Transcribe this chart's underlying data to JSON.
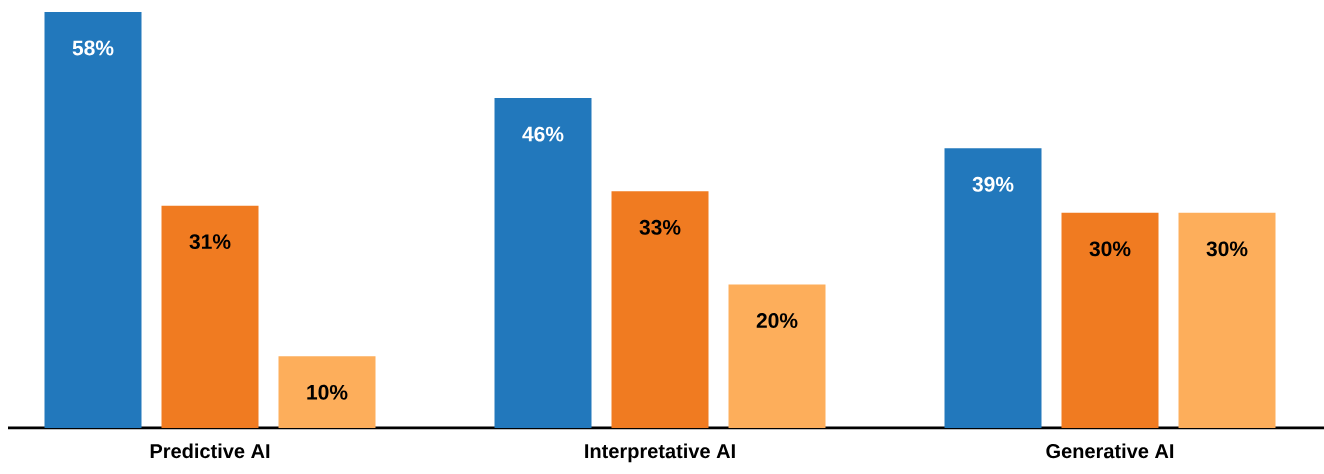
{
  "chart_data": {
    "type": "bar",
    "categories": [
      "Predictive AI",
      "Interpretative AI",
      "Generative AI"
    ],
    "series": [
      {
        "color": "#2278bc",
        "values": [
          58,
          46,
          39
        ],
        "value_labels": [
          "58%",
          "46%",
          "39%"
        ]
      },
      {
        "color": "#f07b21",
        "values": [
          31,
          33,
          30
        ],
        "value_labels": [
          "31%",
          "33%",
          "30%"
        ]
      },
      {
        "color": "#fdae5b",
        "values": [
          10,
          20,
          30
        ],
        "value_labels": [
          "10%",
          "20%",
          "30%"
        ]
      }
    ]
  }
}
